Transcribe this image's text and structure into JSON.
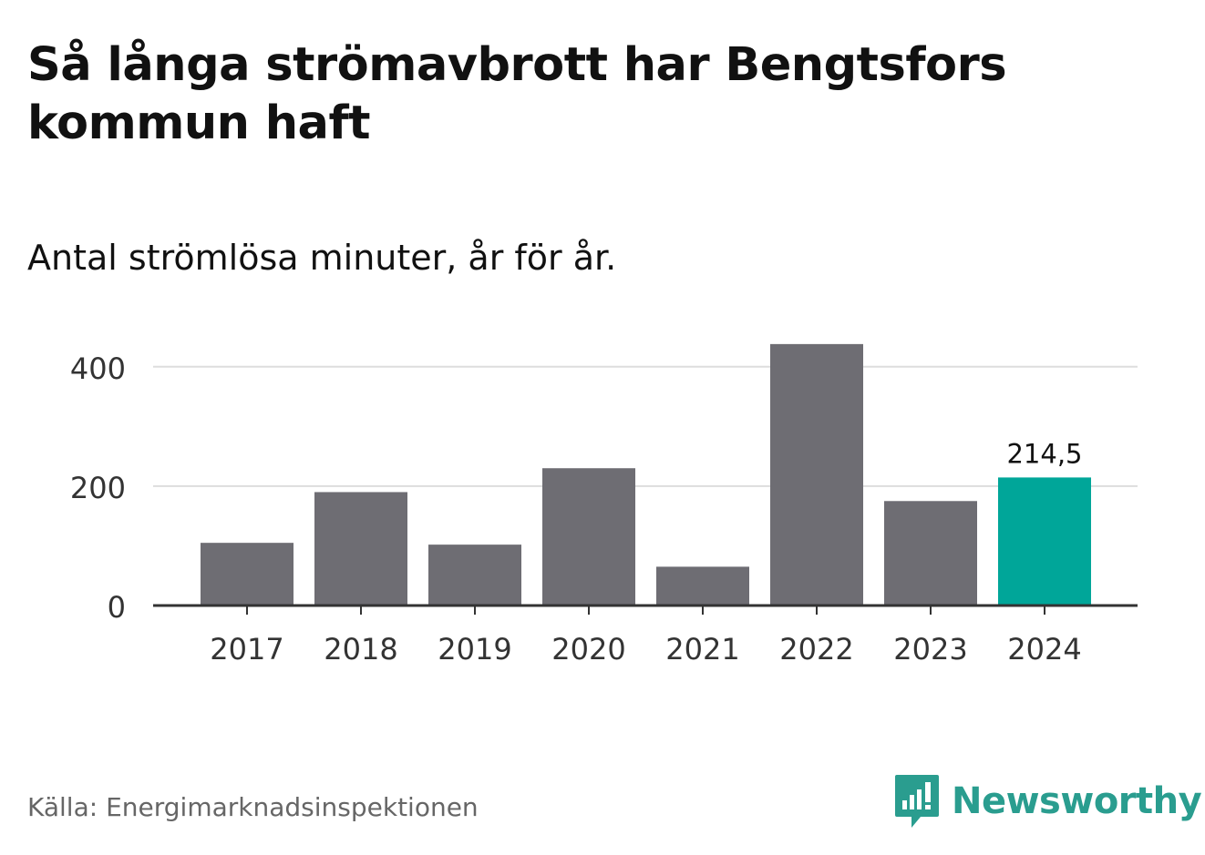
{
  "title": "Så långa strömavbrott har Bengtsfors kommun haft",
  "subtitle": "Antal strömlösa minuter, år för år.",
  "source": "Källa: Energimarknadsinspektionen",
  "brand": {
    "name": "Newsworthy",
    "color": "#2a9d8f",
    "icon": "newsworthy-logo-icon"
  },
  "colors": {
    "bar": "#6e6d73",
    "highlight": "#00a699",
    "grid": "#dddddd",
    "axis": "#333333",
    "text": "#333333"
  },
  "chart_data": {
    "type": "bar",
    "categories": [
      "2017",
      "2018",
      "2019",
      "2020",
      "2021",
      "2022",
      "2023",
      "2024"
    ],
    "values": [
      105,
      190,
      102,
      230,
      65,
      438,
      175,
      214.5
    ],
    "highlight_index": 7,
    "highlight_label": "214,5",
    "yticks": [
      0,
      200,
      400
    ],
    "ylim": [
      0,
      450
    ],
    "xlabel": "",
    "ylabel": "",
    "grid": true
  }
}
